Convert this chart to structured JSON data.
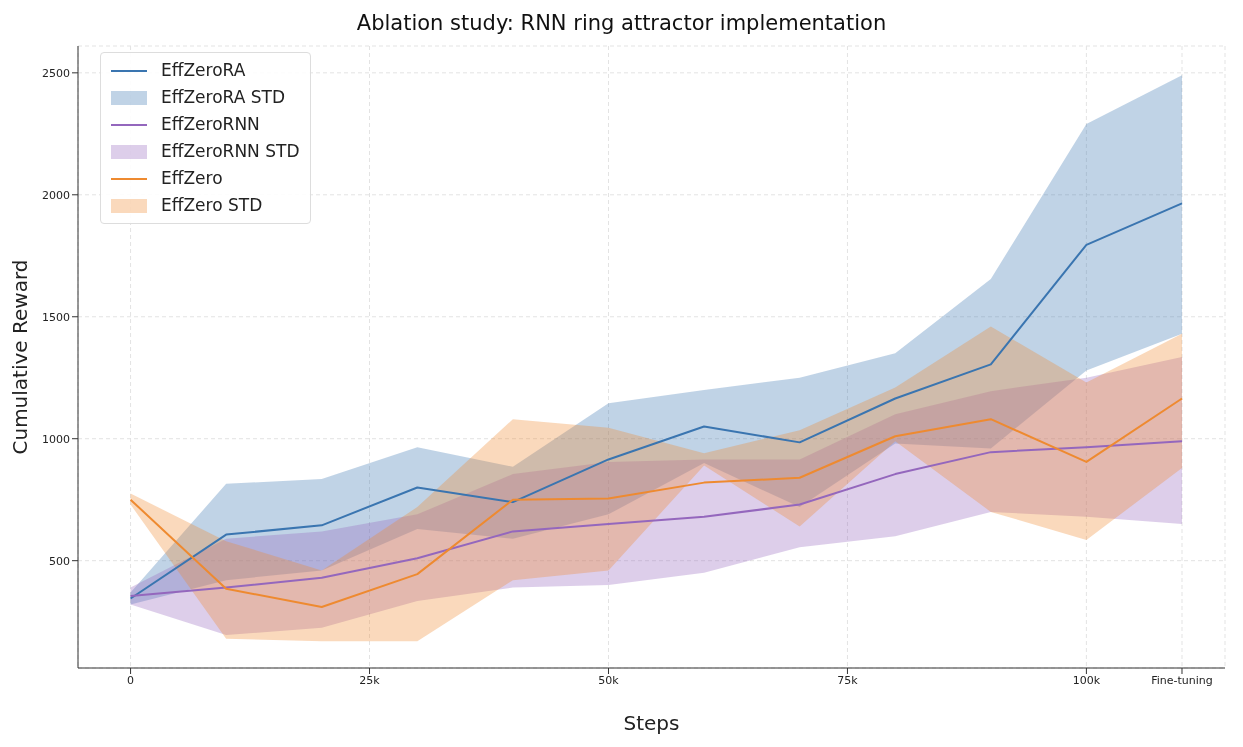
{
  "chart_data": {
    "type": "line",
    "title": "Ablation study: RNN ring attractor implementation",
    "xlabel": "Steps",
    "ylabel": "Cumulative Reward",
    "x": [
      0,
      10000,
      20000,
      30000,
      40000,
      50000,
      60000,
      70000,
      80000,
      90000,
      100000,
      110000
    ],
    "xlim": [
      -5500,
      114500
    ],
    "xticks": [
      0,
      {
        "value": 25000,
        "label": "25k"
      },
      {
        "value": 50000,
        "label": "50k"
      },
      {
        "value": 75000,
        "label": "75k"
      },
      {
        "value": 100000,
        "label": "100k"
      },
      {
        "value": 110000,
        "label": "Fine-tuning"
      }
    ],
    "ylim": [
      60,
      2610
    ],
    "yticks": [
      500,
      1000,
      1500,
      2000,
      2500
    ],
    "grid": true,
    "legend": "top left",
    "annotations": [
      "EffZeroRA STD",
      "EffZeroRNN STD",
      "EffZero STD"
    ],
    "series": [
      {
        "name": "EffZeroRA",
        "color": "#3a75b0",
        "values": [
          345,
          607,
          645,
          800,
          740,
          915,
          1050,
          985,
          1165,
          1305,
          1795,
          1965
        ],
        "lower": [
          320,
          420,
          460,
          630,
          590,
          690,
          900,
          720,
          980,
          960,
          1280,
          1430
        ],
        "upper": [
          370,
          815,
          835,
          965,
          885,
          1145,
          1200,
          1250,
          1350,
          1655,
          2290,
          2490
        ]
      },
      {
        "name": "EffZeroRNN",
        "color": "#9467bd",
        "values": [
          355,
          390,
          430,
          510,
          620,
          650,
          680,
          730,
          855,
          945,
          965,
          990
        ],
        "lower": [
          320,
          195,
          225,
          335,
          390,
          400,
          450,
          555,
          600,
          700,
          680,
          650
        ],
        "upper": [
          390,
          590,
          620,
          690,
          855,
          905,
          915,
          915,
          1100,
          1195,
          1250,
          1335
        ]
      },
      {
        "name": "EffZero",
        "color": "#ee8a30",
        "values": [
          750,
          385,
          310,
          445,
          750,
          755,
          820,
          840,
          1010,
          1080,
          905,
          1165
        ],
        "lower": [
          730,
          180,
          170,
          170,
          420,
          460,
          890,
          640,
          990,
          700,
          585,
          880
        ],
        "upper": [
          775,
          580,
          460,
          720,
          1080,
          1045,
          940,
          1035,
          1210,
          1460,
          1230,
          1430
        ]
      }
    ]
  }
}
